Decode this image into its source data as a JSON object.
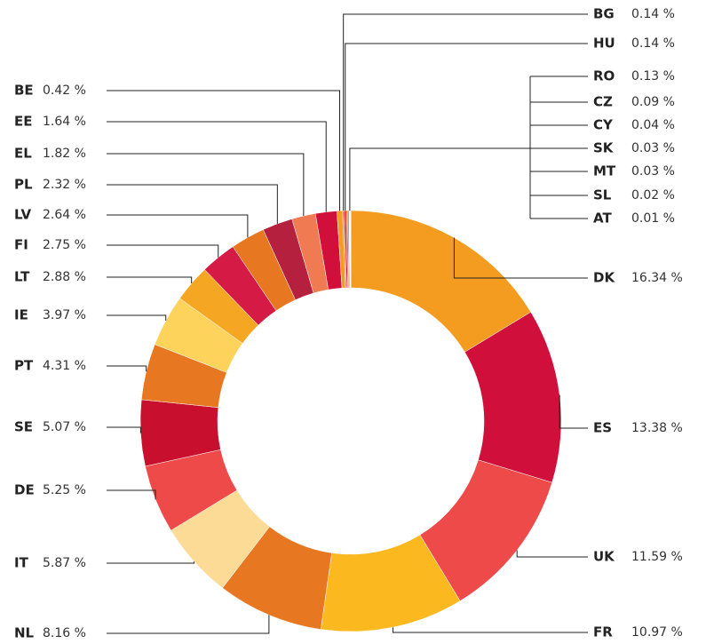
{
  "chart_data": {
    "type": "donut",
    "categories": [
      "DK",
      "ES",
      "UK",
      "FR",
      "NL",
      "IT",
      "DE",
      "SE",
      "PT",
      "IE",
      "LT",
      "FI",
      "LV",
      "PL",
      "EL",
      "EE",
      "BE",
      "BG",
      "HU",
      "RO",
      "CZ",
      "CY",
      "SK",
      "MT",
      "SL",
      "AT"
    ],
    "values": [
      16.34,
      13.38,
      11.59,
      10.97,
      8.16,
      5.87,
      5.25,
      5.07,
      4.31,
      3.97,
      2.88,
      2.75,
      2.64,
      2.32,
      1.82,
      1.64,
      0.42,
      0.14,
      0.14,
      0.13,
      0.09,
      0.04,
      0.03,
      0.03,
      0.02,
      0.01
    ],
    "value_labels": [
      "16.34 %",
      "13.38 %",
      "11.59 %",
      "10.97 %",
      "8.16 %",
      "5.87 %",
      "5.25 %",
      "5.07 %",
      "4.31 %",
      "3.97 %",
      "2.88 %",
      "2.75 %",
      "2.64 %",
      "2.32 %",
      "1.82 %",
      "1.64 %",
      "0.42 %",
      "0.14 %",
      "0.14 %",
      "0.13 %",
      "0.09 %",
      "0.04 %",
      "0.03 %",
      "0.03 %",
      "0.02 %",
      "0.01 %"
    ],
    "colors": [
      "#f39c1f",
      "#d0103a",
      "#ef4a4a",
      "#fbb91f",
      "#e87722",
      "#fbdb96",
      "#ef4a4a",
      "#c8102e",
      "#e87722",
      "#fdd35c",
      "#f5a623",
      "#d41a45",
      "#e87722",
      "#b5203e",
      "#f07a52",
      "#d0103a",
      "#f39c1f",
      "#f07a52",
      "#c8102e",
      "#e87722",
      "#888888",
      "#f5a623",
      "#555555",
      "#fbb91f",
      "#d0103a",
      "#999999"
    ]
  }
}
